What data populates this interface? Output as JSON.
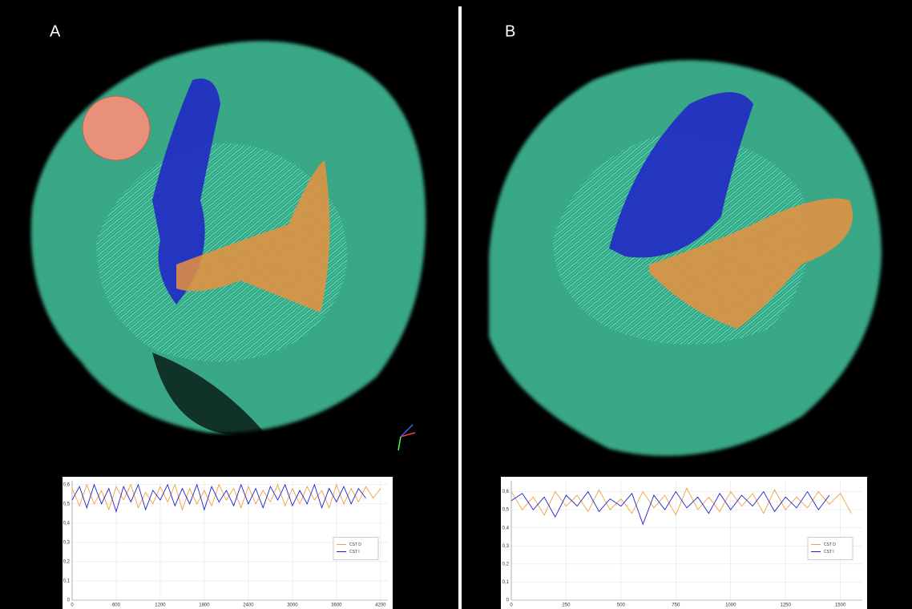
{
  "chart_data": [
    {
      "type": "line",
      "panel": "A",
      "x": [
        0,
        100,
        200,
        300,
        400,
        500,
        600,
        700,
        800,
        900,
        1000,
        1100,
        1200,
        1300,
        1400,
        1500,
        1600,
        1700,
        1800,
        1900,
        2000,
        2100,
        2200,
        2300,
        2400,
        2500,
        2600,
        2700,
        2800,
        2900,
        3000,
        3100,
        3200,
        3300,
        3400,
        3500,
        3600,
        3700,
        3800,
        3900,
        4000,
        4100,
        4200
      ],
      "series": [
        {
          "name": "CST D",
          "color": "#f0a040",
          "values": [
            0.58,
            0.49,
            0.6,
            0.5,
            0.57,
            0.47,
            0.59,
            0.52,
            0.6,
            0.48,
            0.56,
            0.5,
            0.59,
            0.51,
            0.6,
            0.47,
            0.58,
            0.5,
            0.57,
            0.49,
            0.6,
            0.52,
            0.58,
            0.48,
            0.59,
            0.5,
            0.57,
            0.51,
            0.6,
            0.49,
            0.58,
            0.5,
            0.59,
            0.52,
            0.57,
            0.48,
            0.6,
            0.5,
            0.58,
            0.51,
            0.59,
            0.53,
            0.58
          ]
        },
        {
          "name": "CST I",
          "color": "#2020d0",
          "values": [
            0.52,
            0.59,
            0.48,
            0.6,
            0.5,
            0.58,
            0.46,
            0.59,
            0.51,
            0.6,
            0.47,
            0.57,
            0.52,
            0.6,
            0.49,
            0.58,
            0.5,
            0.6,
            0.47,
            0.59,
            0.51,
            0.57,
            0.49,
            0.6,
            0.5,
            0.58,
            0.48,
            0.59,
            0.52,
            0.6,
            0.49,
            0.57,
            0.5,
            0.6,
            0.48,
            0.58,
            0.51,
            0.59,
            0.5,
            0.58,
            0.53,
            null,
            null
          ]
        }
      ],
      "xlim": [
        0,
        4300
      ],
      "xticks": [
        0,
        600,
        1200,
        1800,
        2400,
        3000,
        3600,
        4200
      ],
      "ylim": [
        0,
        0.62
      ],
      "yticks": [
        0,
        {
          "value": 0.1,
          "label": "0,1"
        },
        {
          "value": 0.2,
          "label": "0,2"
        },
        {
          "value": 0.3,
          "label": "0,3"
        },
        {
          "value": 0.4,
          "label": "0,4"
        },
        {
          "value": 0.5,
          "label": "0,5"
        },
        {
          "value": 0.6,
          "label": "0,6"
        }
      ],
      "grid": true,
      "legend": "center right"
    },
    {
      "type": "line",
      "panel": "B",
      "x": [
        0,
        50,
        100,
        150,
        200,
        250,
        300,
        350,
        400,
        450,
        500,
        550,
        600,
        650,
        700,
        750,
        800,
        850,
        900,
        950,
        1000,
        1050,
        1100,
        1150,
        1200,
        1250,
        1300,
        1350,
        1400,
        1450,
        1500,
        1550
      ],
      "series": [
        {
          "name": "CST D",
          "color": "#f0a040",
          "values": [
            0.6,
            0.5,
            0.57,
            0.47,
            0.6,
            0.52,
            0.58,
            0.49,
            0.61,
            0.5,
            0.56,
            0.48,
            0.6,
            0.51,
            0.58,
            0.47,
            0.62,
            0.5,
            0.57,
            0.49,
            0.6,
            0.52,
            0.59,
            0.48,
            0.61,
            0.5,
            0.57,
            0.51,
            0.6,
            0.53,
            0.59,
            0.48
          ]
        },
        {
          "name": "CST I",
          "color": "#2020d0",
          "values": [
            0.55,
            0.59,
            0.5,
            0.57,
            0.46,
            0.58,
            0.52,
            0.6,
            0.49,
            0.56,
            0.52,
            0.59,
            0.42,
            0.58,
            0.5,
            0.6,
            0.51,
            0.57,
            0.48,
            0.59,
            0.5,
            0.58,
            0.52,
            0.6,
            0.49,
            0.57,
            0.51,
            0.6,
            0.5,
            0.58,
            null,
            null
          ]
        }
      ],
      "xlim": [
        0,
        1600
      ],
      "xticks": [
        0,
        250,
        500,
        750,
        1000,
        1250,
        1500
      ],
      "ylim": [
        0,
        0.66
      ],
      "yticks": [
        0,
        {
          "value": 0.1,
          "label": "0,1"
        },
        {
          "value": 0.2,
          "label": "0,2"
        },
        {
          "value": 0.3,
          "label": "0,3"
        },
        {
          "value": 0.4,
          "label": "0,4"
        },
        {
          "value": 0.5,
          "label": "0,5"
        },
        {
          "value": 0.6,
          "label": "0,6"
        }
      ],
      "grid": true,
      "legend": "center right"
    }
  ]
}
